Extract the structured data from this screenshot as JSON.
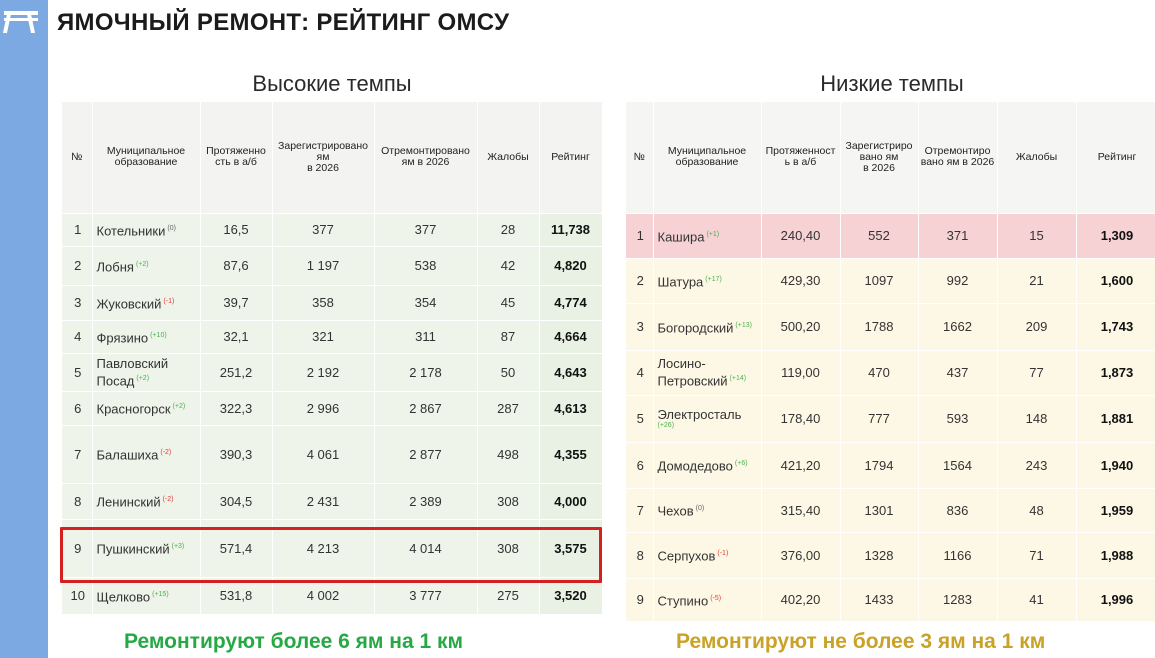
{
  "page_title": "ЯМОЧНЫЙ РЕМОНТ: РЕЙТИНГ ОМСУ",
  "columns": [
    "№",
    "Муниципальное образование",
    "Протяженность в а/б",
    "Зарегистрировано ям в 2026",
    "Отремонтировано ям в 2026",
    "Жалобы",
    "Рейтинг"
  ],
  "high": {
    "title": "Высокие темпы",
    "headers": {
      "num": "№",
      "name": "Муниципальное\nобразование",
      "length": "Протяженно\nсть в а/б",
      "registered": "Зарегистрировано\nям\nв 2026",
      "repaired": "Отремонтировано\nям в 2026",
      "complaints": "Жалобы",
      "rating": "Рейтинг"
    },
    "rows": [
      {
        "num": "1",
        "name": "Котельники",
        "change": "(0)",
        "length": "16,5",
        "registered": "377",
        "repaired": "377",
        "complaints": "28",
        "rating": "11,738"
      },
      {
        "num": "2",
        "name": "Лобня",
        "change": "(+2)",
        "length": "87,6",
        "registered": "1 197",
        "repaired": "538",
        "complaints": "42",
        "rating": "4,820"
      },
      {
        "num": "3",
        "name": "Жуковский",
        "change": "(-1)",
        "length": "39,7",
        "registered": "358",
        "repaired": "354",
        "complaints": "45",
        "rating": "4,774"
      },
      {
        "num": "4",
        "name": "Фрязино",
        "change": "(+10)",
        "length": "32,1",
        "registered": "321",
        "repaired": "311",
        "complaints": "87",
        "rating": "4,664"
      },
      {
        "num": "5",
        "name": "Павловский Посад",
        "change": "(+2)",
        "length": "251,2",
        "registered": "2 192",
        "repaired": "2 178",
        "complaints": "50",
        "rating": "4,643"
      },
      {
        "num": "6",
        "name": "Красногорск",
        "change": "(+2)",
        "length": "322,3",
        "registered": "2 996",
        "repaired": "2 867",
        "complaints": "287",
        "rating": "4,613"
      },
      {
        "num": "7",
        "name": "Балашиха",
        "change": "(-2)",
        "length": "390,3",
        "registered": "4 061",
        "repaired": "2 877",
        "complaints": "498",
        "rating": "4,355"
      },
      {
        "num": "8",
        "name": "Ленинский",
        "change": "(-2)",
        "length": "304,5",
        "registered": "2 431",
        "repaired": "2 389",
        "complaints": "308",
        "rating": "4,000"
      },
      {
        "num": "9",
        "name": "Пушкинский",
        "change": "(+3)",
        "length": "571,4",
        "registered": "4 213",
        "repaired": "4 014",
        "complaints": "308",
        "rating": "3,575"
      },
      {
        "num": "10",
        "name": "Щелково",
        "change": "(+15)",
        "length": "531,8",
        "registered": "4 002",
        "repaired": "3 777",
        "complaints": "275",
        "rating": "3,520"
      }
    ],
    "footer": "Ремонтируют более 6 ям на 1 км"
  },
  "low": {
    "title": "Низкие темпы",
    "headers": {
      "num": "№",
      "name": "Муниципальное\nобразование",
      "length": "Протяженност\nь в а/б",
      "registered": "Зарегистриро\nвано ям\nв 2026",
      "repaired": "Отремонтиро\nвано ям в 2026",
      "complaints": "Жалобы",
      "rating": "Рейтинг"
    },
    "rows": [
      {
        "num": "1",
        "name": "Кашира",
        "change": "(+1)",
        "length": "240,40",
        "registered": "552",
        "repaired": "371",
        "complaints": "15",
        "rating": "1,309"
      },
      {
        "num": "2",
        "name": "Шатура",
        "change": "(+17)",
        "length": "429,30",
        "registered": "1097",
        "repaired": "992",
        "complaints": "21",
        "rating": "1,600"
      },
      {
        "num": "3",
        "name": "Богородский",
        "change": "(+13)",
        "length": "500,20",
        "registered": "1788",
        "repaired": "1662",
        "complaints": "209",
        "rating": "1,743"
      },
      {
        "num": "4",
        "name": "Лосино-Петровский",
        "change": "(+14)",
        "length": "119,00",
        "registered": "470",
        "repaired": "437",
        "complaints": "77",
        "rating": "1,873"
      },
      {
        "num": "5",
        "name": "Электросталь",
        "change": "(+26)",
        "length": "178,40",
        "registered": "777",
        "repaired": "593",
        "complaints": "148",
        "rating": "1,881"
      },
      {
        "num": "6",
        "name": "Домодедово",
        "change": "(+6)",
        "length": "421,20",
        "registered": "1794",
        "repaired": "1564",
        "complaints": "243",
        "rating": "1,940"
      },
      {
        "num": "7",
        "name": "Чехов",
        "change": "(0)",
        "length": "315,40",
        "registered": "1301",
        "repaired": "836",
        "complaints": "48",
        "rating": "1,959"
      },
      {
        "num": "8",
        "name": "Серпухов",
        "change": "(-1)",
        "length": "376,00",
        "registered": "1328",
        "repaired": "1166",
        "complaints": "71",
        "rating": "1,988"
      },
      {
        "num": "9",
        "name": "Ступино",
        "change": "(-5)",
        "length": "402,20",
        "registered": "1433",
        "repaired": "1283",
        "complaints": "41",
        "rating": "1,996"
      }
    ],
    "footer": "Ремонтируют не более 3 ям на 1 км"
  },
  "colors": {
    "sidebar": "#7da9e3",
    "high_table_bg": "#eef4ea",
    "low_table_bg": "#fdf8e5",
    "low_top_row_bg": "#f6d2d4",
    "highlight_border": "#d32020",
    "footer_high": "#26a944",
    "footer_low": "#c9a227",
    "change_up": "#4caf50",
    "change_down": "#e53935"
  },
  "highlighted_row": {
    "table": "high",
    "num": "9",
    "name": "Пушкинский"
  },
  "icons": {
    "logo": "road-logo-icon"
  }
}
